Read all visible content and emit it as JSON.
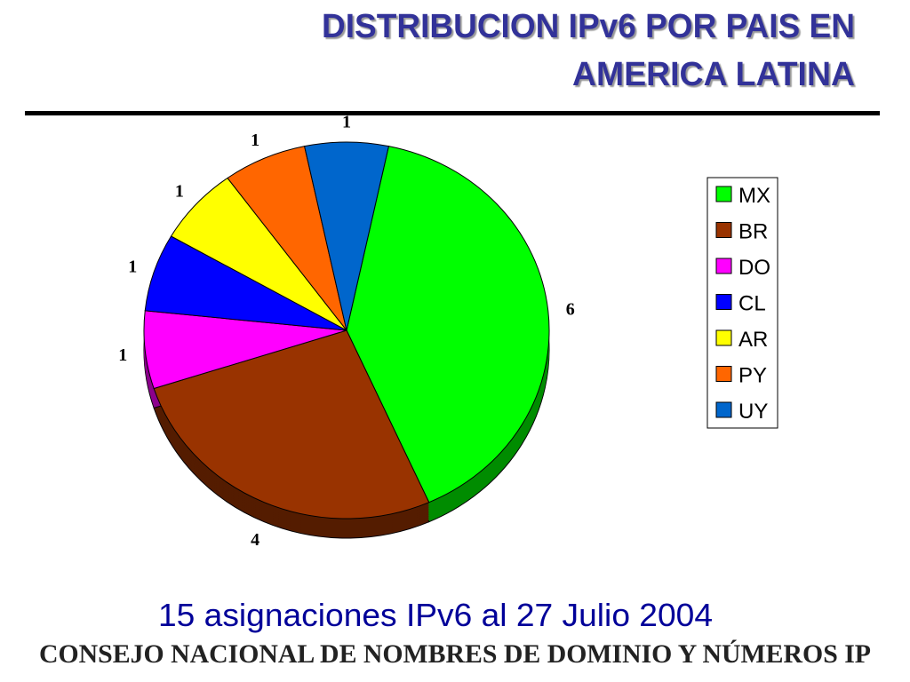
{
  "chart_data": {
    "type": "pie",
    "title": [
      "DISTRIBUCION IPv6 POR PAIS EN",
      "AMERICA LATINA"
    ],
    "categories": [
      "MX",
      "BR",
      "DO",
      "CL",
      "AR",
      "PY",
      "UY"
    ],
    "values": [
      6,
      4,
      1,
      1,
      1,
      1,
      1
    ],
    "colors": [
      "#00ff00",
      "#993300",
      "#ff00ff",
      "#0000ff",
      "#ffff00",
      "#ff6600",
      "#0066cc"
    ],
    "legend": "right",
    "subtitle": "15 asignaciones IPv6 al 27 Julio 2004",
    "footer": "CONSEJO NACIONAL DE NOMBRES DE DOMINIO Y NÚMEROS IP"
  }
}
